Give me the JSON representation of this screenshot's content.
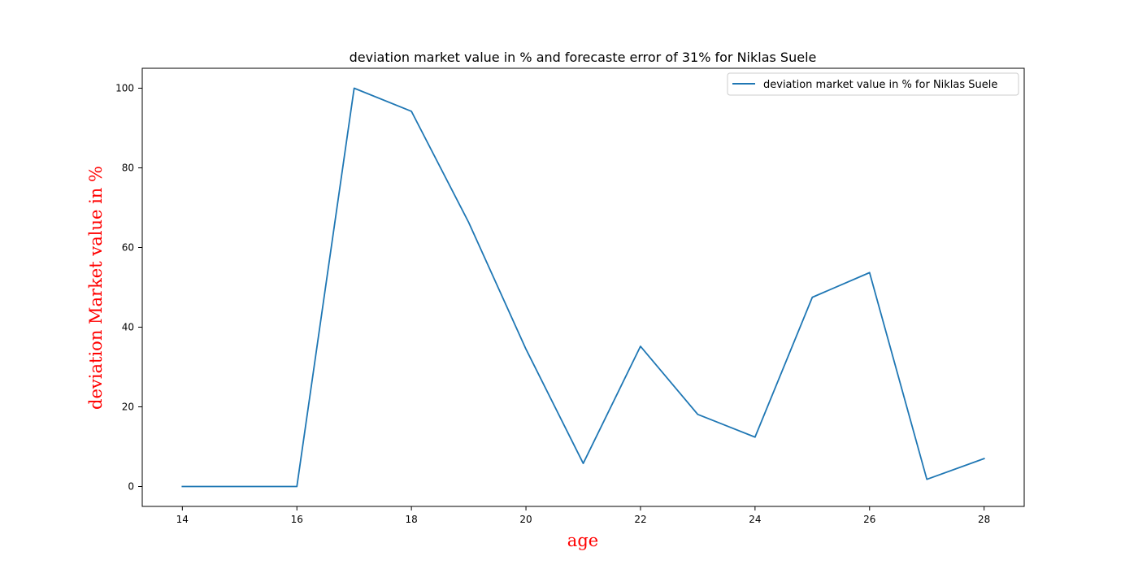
{
  "chart_data": {
    "type": "line",
    "title": "deviation market value in % and forecaste error of 31% for Niklas Suele",
    "xlabel": "age",
    "ylabel": "deviation Market value in %",
    "x": [
      14,
      15,
      16,
      17,
      18,
      19,
      20,
      21,
      22,
      23,
      24,
      25,
      26,
      27,
      28
    ],
    "series": [
      {
        "name": "deviation market value in % for Niklas Suele",
        "values": [
          0,
          0,
          0,
          100,
          94.2,
          66.3,
          34.5,
          5.8,
          35.2,
          18.1,
          12.4,
          47.5,
          53.7,
          1.8,
          7.0
        ],
        "color": "#1f77b4"
      }
    ],
    "xticks": [
      14,
      16,
      18,
      20,
      22,
      24,
      26,
      28
    ],
    "yticks": [
      0,
      20,
      40,
      60,
      80,
      100
    ],
    "xlim": [
      13.3,
      28.7
    ],
    "ylim": [
      -5,
      105
    ],
    "label_color": "#ff0000",
    "grid": false,
    "legend_position": "upper right"
  }
}
